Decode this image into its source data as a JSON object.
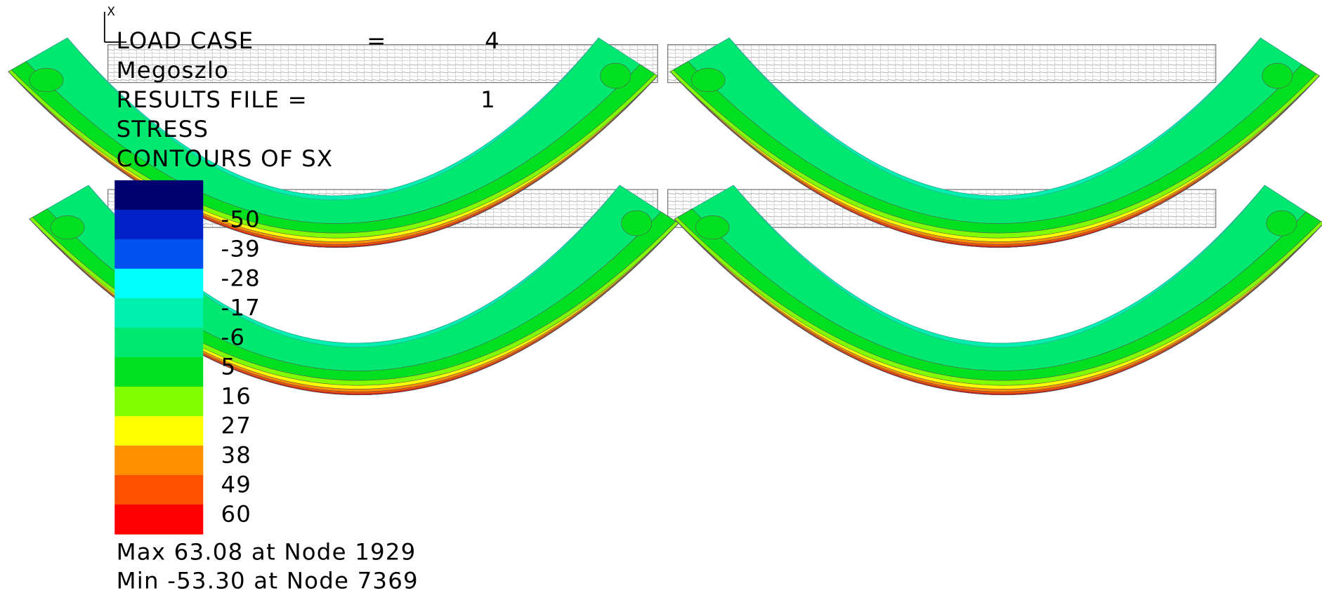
{
  "axis_triad": {
    "label": "X"
  },
  "header": {
    "load_case": {
      "label": "LOAD CASE",
      "equals": "=",
      "value": "4"
    },
    "name": "Megoszlo",
    "results_file": {
      "label": "RESULTS FILE =",
      "value": "1"
    },
    "result_type": "STRESS",
    "contours": "CONTOURS OF SX"
  },
  "legend": {
    "colors": [
      "#000070",
      "#0020c8",
      "#0050f0",
      "#00ffff",
      "#00f0b0",
      "#00e870",
      "#00e020",
      "#80ff00",
      "#ffff00",
      "#ff9000",
      "#ff5000",
      "#ff0000"
    ],
    "labels": [
      -50,
      -39,
      -28,
      -17,
      -6,
      5,
      16,
      27,
      38,
      49,
      60
    ]
  },
  "footer": {
    "max": "Max 63.08 at Node 1929",
    "min": "Min -53.30 at Node 7369"
  }
}
